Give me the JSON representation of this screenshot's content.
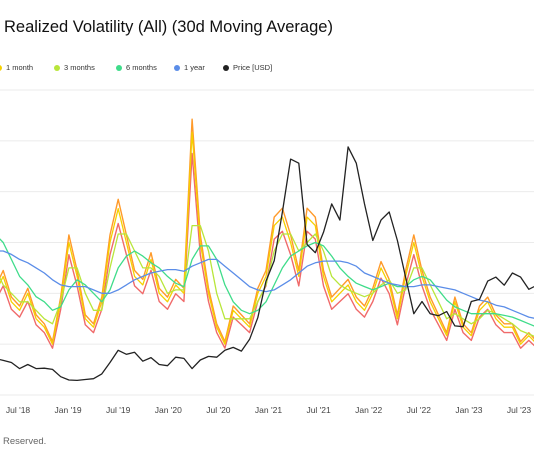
{
  "title": "Realized Volatility (All) (30d Moving Average)",
  "footer": "Reserved.",
  "colors": {
    "one_month": "#f5d000",
    "three_months": "#b8e63a",
    "six_months": "#3fdc8a",
    "one_year": "#5b8de8",
    "price": "#222222",
    "accent_orange": "#ff9a2a",
    "accent_red": "#f06a6a",
    "grid": "#ebebeb"
  },
  "chart_data": {
    "type": "line",
    "title": "Realized Volatility (All) (30d Moving Average)",
    "grid": true,
    "legend_position": "top-left",
    "x_tick_labels": [
      "Jul '18",
      "Jan '19",
      "Jul '19",
      "Jan '20",
      "Jul '20",
      "Jan '21",
      "Jul '21",
      "Jan '22",
      "Jul '22",
      "Jan '23",
      "Jul '23"
    ],
    "x_range": [
      "2018-03",
      "2023-09"
    ],
    "y_range_volatility": [
      0,
      1.8
    ],
    "y_range_price": [
      0,
      75000
    ],
    "x": [
      "2018-03",
      "2018-04",
      "2018-05",
      "2018-06",
      "2018-07",
      "2018-08",
      "2018-09",
      "2018-10",
      "2018-11",
      "2018-12",
      "2019-01",
      "2019-02",
      "2019-03",
      "2019-04",
      "2019-05",
      "2019-06",
      "2019-07",
      "2019-08",
      "2019-09",
      "2019-10",
      "2019-11",
      "2019-12",
      "2020-01",
      "2020-02",
      "2020-03",
      "2020-04",
      "2020-05",
      "2020-06",
      "2020-07",
      "2020-08",
      "2020-09",
      "2020-10",
      "2020-11",
      "2020-12",
      "2021-01",
      "2021-02",
      "2021-03",
      "2021-04",
      "2021-05",
      "2021-06",
      "2021-07",
      "2021-08",
      "2021-09",
      "2021-10",
      "2021-11",
      "2021-12",
      "2022-01",
      "2022-02",
      "2022-03",
      "2022-04",
      "2022-05",
      "2022-06",
      "2022-07",
      "2022-08",
      "2022-09",
      "2022-10",
      "2022-11",
      "2022-12",
      "2023-01",
      "2023-02",
      "2023-03",
      "2023-04",
      "2023-05",
      "2023-06",
      "2023-07",
      "2023-08",
      "2023-09"
    ],
    "series": [
      {
        "name": "1 month",
        "values": [
          0.6,
          0.7,
          0.55,
          0.5,
          0.6,
          0.45,
          0.4,
          0.3,
          0.55,
          0.9,
          0.7,
          0.45,
          0.4,
          0.55,
          0.9,
          1.1,
          0.9,
          0.7,
          0.65,
          0.8,
          0.6,
          0.55,
          0.65,
          0.6,
          1.55,
          0.9,
          0.6,
          0.4,
          0.3,
          0.5,
          0.45,
          0.4,
          0.6,
          0.7,
          1.0,
          1.05,
          0.9,
          0.7,
          1.05,
          1.0,
          0.7,
          0.55,
          0.6,
          0.65,
          0.55,
          0.5,
          0.6,
          0.75,
          0.65,
          0.45,
          0.7,
          0.9,
          0.7,
          0.55,
          0.45,
          0.35,
          0.55,
          0.4,
          0.35,
          0.5,
          0.55,
          0.45,
          0.4,
          0.4,
          0.3,
          0.35,
          0.3
        ]
      },
      {
        "name": "3 months",
        "values": [
          0.75,
          0.65,
          0.6,
          0.55,
          0.55,
          0.5,
          0.45,
          0.42,
          0.55,
          0.75,
          0.75,
          0.6,
          0.5,
          0.5,
          0.75,
          0.95,
          0.95,
          0.85,
          0.75,
          0.75,
          0.7,
          0.6,
          0.62,
          0.62,
          1.0,
          1.0,
          0.85,
          0.6,
          0.45,
          0.45,
          0.45,
          0.45,
          0.55,
          0.65,
          0.85,
          0.95,
          0.95,
          0.85,
          0.9,
          0.95,
          0.85,
          0.7,
          0.65,
          0.62,
          0.6,
          0.58,
          0.6,
          0.65,
          0.68,
          0.6,
          0.62,
          0.75,
          0.75,
          0.65,
          0.55,
          0.45,
          0.48,
          0.45,
          0.42,
          0.45,
          0.5,
          0.48,
          0.45,
          0.42,
          0.38,
          0.36,
          0.34
        ]
      },
      {
        "name": "6 months",
        "values": [
          0.95,
          0.9,
          0.8,
          0.7,
          0.65,
          0.58,
          0.55,
          0.5,
          0.52,
          0.62,
          0.68,
          0.65,
          0.6,
          0.55,
          0.62,
          0.75,
          0.82,
          0.85,
          0.82,
          0.78,
          0.75,
          0.7,
          0.66,
          0.64,
          0.8,
          0.88,
          0.88,
          0.8,
          0.65,
          0.55,
          0.5,
          0.48,
          0.5,
          0.55,
          0.65,
          0.75,
          0.82,
          0.85,
          0.88,
          0.9,
          0.88,
          0.82,
          0.75,
          0.7,
          0.66,
          0.64,
          0.62,
          0.64,
          0.66,
          0.64,
          0.64,
          0.68,
          0.7,
          0.68,
          0.62,
          0.56,
          0.52,
          0.5,
          0.48,
          0.48,
          0.48,
          0.48,
          0.47,
          0.46,
          0.44,
          0.42,
          0.4
        ]
      },
      {
        "name": "1 year",
        "values": [
          0.85,
          0.85,
          0.83,
          0.8,
          0.78,
          0.75,
          0.72,
          0.68,
          0.65,
          0.64,
          0.64,
          0.64,
          0.62,
          0.6,
          0.6,
          0.62,
          0.65,
          0.68,
          0.7,
          0.72,
          0.73,
          0.74,
          0.74,
          0.73,
          0.76,
          0.78,
          0.8,
          0.8,
          0.76,
          0.72,
          0.68,
          0.64,
          0.62,
          0.61,
          0.62,
          0.65,
          0.68,
          0.72,
          0.76,
          0.78,
          0.79,
          0.79,
          0.79,
          0.78,
          0.76,
          0.72,
          0.7,
          0.68,
          0.66,
          0.65,
          0.64,
          0.64,
          0.65,
          0.65,
          0.64,
          0.63,
          0.62,
          0.6,
          0.58,
          0.56,
          0.55,
          0.53,
          0.52,
          0.5,
          0.48,
          0.46,
          0.45
        ]
      },
      {
        "name": "Price [USD]",
        "values": [
          9000,
          8500,
          8000,
          6500,
          7500,
          6500,
          6600,
          6300,
          4500,
          3700,
          3600,
          3800,
          4000,
          5200,
          8000,
          11000,
          10000,
          10500,
          8300,
          9200,
          7500,
          7200,
          9300,
          9000,
          6500,
          8600,
          9500,
          9300,
          11000,
          11700,
          10800,
          13700,
          19000,
          28000,
          33000,
          45000,
          58000,
          57000,
          37000,
          35000,
          40000,
          47000,
          43000,
          61000,
          57000,
          47000,
          38000,
          43000,
          45000,
          38000,
          29000,
          20000,
          23000,
          20000,
          19500,
          20500,
          17000,
          16800,
          23000,
          23500,
          28000,
          29000,
          27000,
          30000,
          29000,
          26000,
          27000
        ]
      }
    ]
  }
}
